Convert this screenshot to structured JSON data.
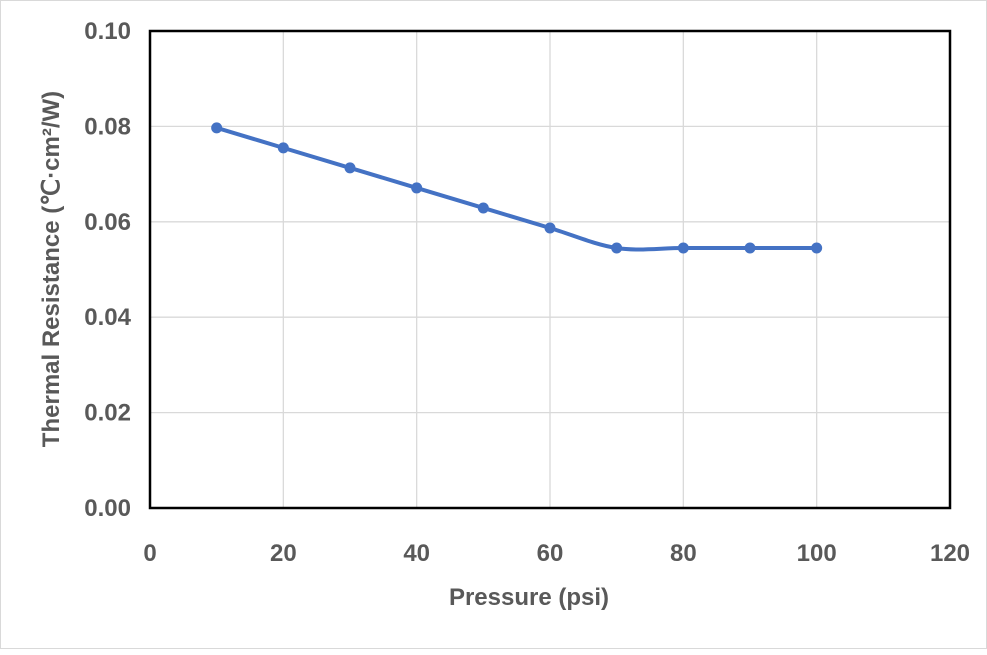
{
  "chart_data": {
    "type": "line",
    "title": "",
    "xlabel": "Pressure (psi)",
    "ylabel": "Thermal Resistance (℃·cm²/W)",
    "xlim": [
      0,
      120
    ],
    "ylim": [
      0,
      0.1
    ],
    "xticks": [
      "0",
      "20",
      "40",
      "60",
      "80",
      "100",
      "120"
    ],
    "yticks": [
      "0.00",
      "0.02",
      "0.04",
      "0.06",
      "0.08",
      "0.10"
    ],
    "grid": true,
    "legend": "none",
    "series": [
      {
        "name": "Thermal Resistance",
        "color": "#4472c4",
        "smooth": true,
        "x": [
          10,
          20,
          30,
          40,
          50,
          60,
          70,
          80,
          90,
          100
        ],
        "y": [
          0.0797,
          0.0755,
          0.0713,
          0.0671,
          0.0629,
          0.0587,
          0.0545,
          0.0545,
          0.0545,
          0.0545
        ]
      }
    ]
  }
}
